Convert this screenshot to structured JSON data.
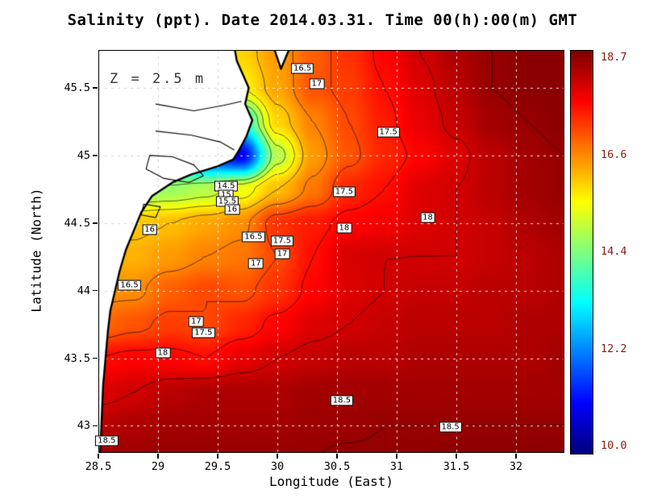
{
  "title": "Salinity (ppt). Date 2014.03.31. Time 00(h):00(m) GMT",
  "annotation": "Z = 2.5 m",
  "axes": {
    "xlabel": "Longitude (East)",
    "ylabel": "Latitude (North)",
    "x_ticks": [
      28.5,
      29,
      29.5,
      30,
      30.5,
      31,
      31.5,
      32
    ],
    "x_tick_labels": [
      "28.5",
      "29",
      "29.5",
      "30",
      "30.5",
      "31",
      "31.5",
      "32"
    ],
    "y_ticks": [
      43,
      43.5,
      44,
      44.5,
      45,
      45.5
    ],
    "y_tick_labels": [
      "43",
      "43.5",
      "44",
      "44.5",
      "45",
      "45.5"
    ],
    "xlim": [
      28.5,
      32.405
    ],
    "ylim": [
      42.8,
      45.78
    ]
  },
  "colorbar": {
    "min": 10.0,
    "max": 18.7,
    "tick_labels": [
      "18.7",
      "16.6",
      "14.4",
      "12.2",
      "10.0"
    ],
    "label_color": "#8b1a10"
  },
  "colors": {
    "land": "#ffffff",
    "coastline": "#000000",
    "contour": "rgba(0,0,0,0.78)",
    "grid_water": "rgba(255,255,255,0.9)",
    "grid_land": "#d4d4d4"
  },
  "chart_data": {
    "type": "heatmap",
    "variable": "Salinity",
    "units": "ppt",
    "depth": "Z = 2.5 m",
    "date": "2014.03.31",
    "time": "00(h):00(m) GMT",
    "value_range": [
      10.0,
      18.7
    ],
    "lon": [
      28.5,
      28.8,
      29.1,
      29.4,
      29.7,
      30.0,
      30.3,
      30.6,
      30.9,
      31.2,
      31.5,
      31.8,
      32.1,
      32.4
    ],
    "lat": [
      45.75,
      45.5,
      45.25,
      45.0,
      44.75,
      44.5,
      44.25,
      44.0,
      43.75,
      43.5,
      43.25,
      43.0,
      42.75
    ],
    "values": [
      [
        15.5,
        15.5,
        15.5,
        15.6,
        15.8,
        16.3,
        16.8,
        17.2,
        17.6,
        18.0,
        18.3,
        18.5,
        18.6,
        18.6
      ],
      [
        15.0,
        15.0,
        15.0,
        15.2,
        15.5,
        16.2,
        16.9,
        17.1,
        17.5,
        17.9,
        18.2,
        18.5,
        18.6,
        18.6
      ],
      [
        14.0,
        14.0,
        14.0,
        13.8,
        13.5,
        15.8,
        16.5,
        17.0,
        17.4,
        17.8,
        18.1,
        18.4,
        18.5,
        18.6
      ],
      [
        13.0,
        13.0,
        12.5,
        11.5,
        11.0,
        14.8,
        16.3,
        16.9,
        17.3,
        17.6,
        17.9,
        18.2,
        18.4,
        18.5
      ],
      [
        14.5,
        14.5,
        14.6,
        14.8,
        15.3,
        16.0,
        16.6,
        17.3,
        17.5,
        17.9,
        18.0,
        18.2,
        18.4,
        18.5
      ],
      [
        15.9,
        15.9,
        16.0,
        16.2,
        16.4,
        17.2,
        17.4,
        17.6,
        17.7,
        17.9,
        18.0,
        18.1,
        18.3,
        18.4
      ],
      [
        16.1,
        16.1,
        16.3,
        16.5,
        16.6,
        17.0,
        17.5,
        17.95,
        18.0,
        18.0,
        18.0,
        18.1,
        18.2,
        18.3
      ],
      [
        16.4,
        16.4,
        16.8,
        17.0,
        16.9,
        17.2,
        17.6,
        17.9,
        18.0,
        18.1,
        18.1,
        18.2,
        18.2,
        18.3
      ],
      [
        16.7,
        16.9,
        17.1,
        17.0,
        17.3,
        17.6,
        17.9,
        18.0,
        18.1,
        18.2,
        18.2,
        18.2,
        18.3,
        18.3
      ],
      [
        17.5,
        17.6,
        17.6,
        17.5,
        17.8,
        18.0,
        18.1,
        18.2,
        18.2,
        18.3,
        18.3,
        18.3,
        18.3,
        18.4
      ],
      [
        17.9,
        18.0,
        18.2,
        18.3,
        18.3,
        18.3,
        18.4,
        18.4,
        18.4,
        18.4,
        18.4,
        18.4,
        18.4,
        18.4
      ],
      [
        18.2,
        18.3,
        18.4,
        18.4,
        18.4,
        18.4,
        18.45,
        18.45,
        18.5,
        18.5,
        18.5,
        18.5,
        18.5,
        18.5
      ],
      [
        18.4,
        18.45,
        18.5,
        18.5,
        18.5,
        18.5,
        18.5,
        18.55,
        18.55,
        18.55,
        18.6,
        18.6,
        18.6,
        18.6
      ]
    ],
    "contour_levels": [
      14.5,
      15,
      15.5,
      16,
      16.5,
      17,
      17.5,
      18,
      18.5
    ],
    "contour_labels": [
      {
        "t": "16.5",
        "lon": 30.21,
        "lat": 45.64
      },
      {
        "t": "17",
        "lon": 30.33,
        "lat": 45.53
      },
      {
        "t": "17.5",
        "lon": 30.93,
        "lat": 45.17
      },
      {
        "t": "14.5",
        "lon": 29.57,
        "lat": 44.77
      },
      {
        "t": "15",
        "lon": 29.57,
        "lat": 44.71
      },
      {
        "t": "15.5",
        "lon": 29.58,
        "lat": 44.66
      },
      {
        "t": "16",
        "lon": 29.62,
        "lat": 44.6
      },
      {
        "t": "17.5",
        "lon": 30.56,
        "lat": 44.73
      },
      {
        "t": "18",
        "lon": 31.26,
        "lat": 44.54
      },
      {
        "t": "18",
        "lon": 30.56,
        "lat": 44.46
      },
      {
        "t": "16",
        "lon": 28.93,
        "lat": 44.45
      },
      {
        "t": "16.5",
        "lon": 29.8,
        "lat": 44.4
      },
      {
        "t": "17.5",
        "lon": 30.04,
        "lat": 44.37
      },
      {
        "t": "17",
        "lon": 30.04,
        "lat": 44.27
      },
      {
        "t": "17",
        "lon": 29.82,
        "lat": 44.2
      },
      {
        "t": "16.5",
        "lon": 28.76,
        "lat": 44.04
      },
      {
        "t": "17",
        "lon": 29.32,
        "lat": 43.77
      },
      {
        "t": "17.5",
        "lon": 29.38,
        "lat": 43.69
      },
      {
        "t": "18",
        "lon": 29.04,
        "lat": 43.54
      },
      {
        "t": "18.5",
        "lon": 30.54,
        "lat": 43.19
      },
      {
        "t": "18.5",
        "lon": 31.45,
        "lat": 42.99
      },
      {
        "t": "18.5",
        "lon": 28.57,
        "lat": 42.89
      }
    ],
    "coastline": [
      [
        29.62,
        45.9
      ],
      [
        29.66,
        45.7
      ],
      [
        29.72,
        45.58
      ],
      [
        29.76,
        45.5
      ],
      [
        29.73,
        45.38
      ],
      [
        29.79,
        45.26
      ],
      [
        29.74,
        45.14
      ],
      [
        29.68,
        45.04
      ],
      [
        29.63,
        44.97
      ],
      [
        29.5,
        44.92
      ],
      [
        29.28,
        44.86
      ],
      [
        29.12,
        44.8
      ],
      [
        28.95,
        44.7
      ],
      [
        28.86,
        44.58
      ],
      [
        28.8,
        44.45
      ],
      [
        28.73,
        44.3
      ],
      [
        28.68,
        44.15
      ],
      [
        28.64,
        44.0
      ],
      [
        28.6,
        43.85
      ],
      [
        28.58,
        43.7
      ],
      [
        28.56,
        43.5
      ],
      [
        28.54,
        43.3
      ],
      [
        28.53,
        43.1
      ],
      [
        28.52,
        42.9
      ],
      [
        28.51,
        42.7
      ],
      [
        28.4,
        42.7
      ],
      [
        28.4,
        45.9
      ]
    ],
    "delta_lobe": [
      [
        29.95,
        45.85
      ],
      [
        30.03,
        45.64
      ],
      [
        30.13,
        45.85
      ]
    ],
    "land_detail": [
      {
        "closed": false,
        "pts": [
          [
            28.98,
            45.38
          ],
          [
            29.3,
            45.33
          ],
          [
            29.55,
            45.37
          ],
          [
            29.7,
            45.4
          ]
        ]
      },
      {
        "closed": false,
        "pts": [
          [
            28.98,
            45.18
          ],
          [
            29.28,
            45.15
          ],
          [
            29.52,
            45.1
          ],
          [
            29.64,
            45.04
          ]
        ]
      },
      {
        "closed": true,
        "pts": [
          [
            28.93,
            45.0
          ],
          [
            29.12,
            44.99
          ],
          [
            29.3,
            44.93
          ],
          [
            29.38,
            44.85
          ],
          [
            29.26,
            44.8
          ],
          [
            29.05,
            44.83
          ],
          [
            28.9,
            44.9
          ]
        ]
      },
      {
        "closed": true,
        "pts": [
          [
            28.88,
            44.64
          ],
          [
            29.02,
            44.62
          ],
          [
            28.98,
            44.54
          ],
          [
            28.86,
            44.56
          ]
        ]
      }
    ]
  }
}
